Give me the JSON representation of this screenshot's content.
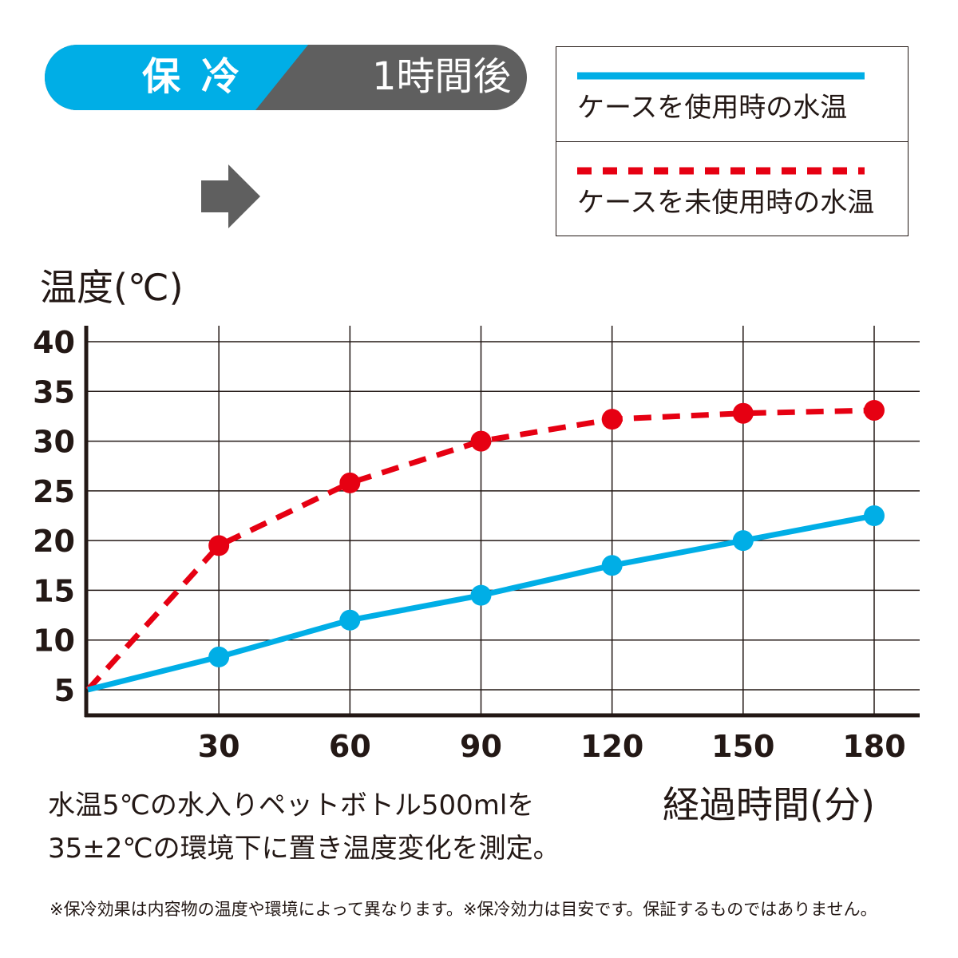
{
  "header": {
    "label": "保冷",
    "time": "1時間後"
  },
  "legend": {
    "items": [
      {
        "label": "ケースを使用時の水温",
        "style": "solid",
        "color": "#00aee6"
      },
      {
        "label": "ケースを未使用時の水温",
        "style": "dashed",
        "color": "#e60012"
      }
    ]
  },
  "chart_data": {
    "type": "line",
    "ylabel": "温度(℃)",
    "xlabel": "経過時間(分)",
    "x": [
      0,
      30,
      60,
      90,
      120,
      150,
      180
    ],
    "x_tick_labels": [
      "30",
      "60",
      "90",
      "120",
      "150",
      "180"
    ],
    "y_tick_labels": [
      "40",
      "35",
      "30",
      "25",
      "20",
      "15",
      "10",
      "5"
    ],
    "xlim": [
      0,
      180
    ],
    "ylim": [
      5,
      40
    ],
    "grid": true,
    "series": [
      {
        "name": "ケースを使用時の水温",
        "color": "#00aee6",
        "style": "solid",
        "values": [
          5,
          8.3,
          12.0,
          14.5,
          17.5,
          20.0,
          22.5
        ]
      },
      {
        "name": "ケースを未使用時の水温",
        "color": "#e60012",
        "style": "dashed",
        "values": [
          5,
          19.5,
          25.8,
          30.0,
          32.2,
          32.8,
          33.1
        ]
      }
    ]
  },
  "notes": {
    "line1": "水温5℃の水入りペットボトル500mlを",
    "line2": "35±2℃の環境下に置き温度変化を測定。",
    "disclaimer": "※保冷効果は内容物の温度や環境によって異なります。※保冷効力は目安です。保証するものではありません。"
  },
  "colors": {
    "accent_blue": "#00aee6",
    "accent_red": "#e60012",
    "header_gray": "#5f5f5f",
    "text": "#231815"
  }
}
